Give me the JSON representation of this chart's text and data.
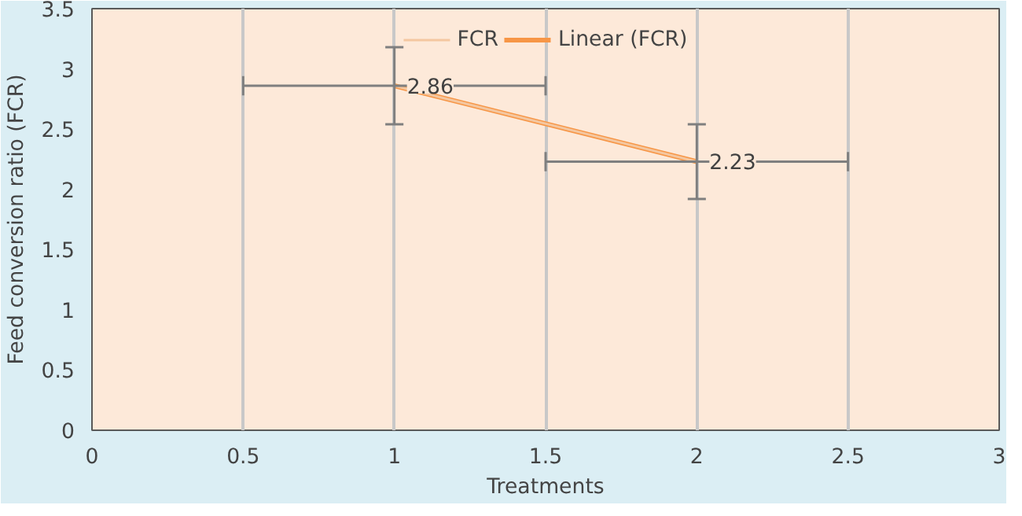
{
  "chart_data": {
    "type": "line",
    "xlabel": "Treatments",
    "ylabel": "Feed conversion ratio (FCR)",
    "x": [
      1,
      2
    ],
    "series": [
      {
        "name": "Linear (FCR)",
        "color": "#f79646",
        "x": [
          1,
          2
        ],
        "values": [
          2.86,
          2.23
        ]
      },
      {
        "name": "FCR",
        "type": "line",
        "color": "#f4c7a0",
        "values": [
          2.86,
          2.23
        ],
        "errors": [
          0.32,
          0.31
        ],
        "xerrors": [
          0.5,
          0.5
        ],
        "data_labels": true
      }
    ],
    "xlim": [
      0,
      3
    ],
    "xticks": [
      0,
      0.5,
      1,
      1.5,
      2,
      2.5,
      3
    ],
    "ylim": [
      0,
      3.5
    ],
    "yticks": [
      0,
      0.5,
      1,
      1.5,
      2,
      2.5,
      3,
      3.5
    ],
    "grid": "x",
    "legend": "top",
    "marker": "none"
  }
}
